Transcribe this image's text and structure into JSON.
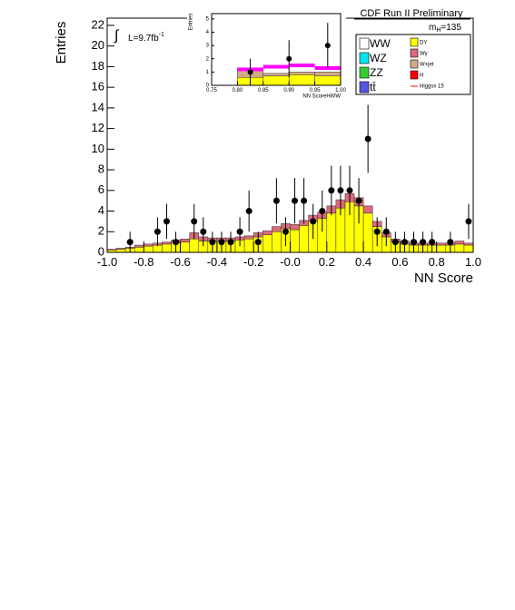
{
  "chart_data": {
    "type": "histogram",
    "title": "CDF Run II Preliminary",
    "xlabel": "NN Score",
    "ylabel": "Entries",
    "luminosity": "L=9.7fb",
    "luminosity_exponent": "-1",
    "mass": {
      "symbol": "m",
      "subscript": "H",
      "text": "=135"
    },
    "xlim": [
      -1.0,
      1.0
    ],
    "ylim": [
      0,
      22.7
    ],
    "xticks": [
      {
        "value": -1.0,
        "label": "-1.0"
      },
      -0.8,
      -0.6,
      -0.4,
      -0.2,
      {
        "value": 0,
        "label": "-0.0"
      },
      0.2,
      0.4,
      0.6,
      0.8,
      {
        "value": 1.0,
        "label": "1.0"
      }
    ],
    "yticks": [
      0,
      2,
      4,
      6,
      8,
      10,
      12,
      14,
      16,
      18,
      20,
      22
    ],
    "bins": [
      -1.0,
      -0.95,
      -0.9,
      -0.85,
      -0.8,
      -0.75,
      -0.7,
      -0.65,
      -0.6,
      -0.55,
      -0.5,
      -0.45,
      -0.4,
      -0.35,
      -0.3,
      -0.25,
      -0.2,
      -0.15,
      -0.1,
      -0.05,
      0.0,
      0.05,
      0.1,
      0.15,
      0.2,
      0.25,
      0.3,
      0.35,
      0.4,
      0.45,
      0.5,
      0.55,
      0.6,
      0.65,
      0.7,
      0.75,
      0.8,
      0.85,
      0.9,
      0.95,
      1.0
    ],
    "series": [
      {
        "name": "DY",
        "color": "#ffff00",
        "values": [
          0.2,
          0.3,
          0.4,
          0.5,
          0.6,
          0.7,
          0.8,
          0.9,
          1.0,
          1.3,
          1.1,
          1.1,
          1.1,
          1.1,
          1.2,
          1.3,
          1.5,
          1.7,
          2.0,
          2.3,
          2.2,
          2.6,
          3.0,
          3.3,
          3.8,
          4.3,
          4.9,
          4.5,
          3.8,
          2.5,
          1.5,
          1.0,
          0.8,
          0.7,
          0.7,
          0.7,
          0.7,
          0.7,
          0.8,
          0.7
        ]
      },
      {
        "name": "Wγ",
        "color": "#d96b7b",
        "values": [
          0.1,
          0.1,
          0.1,
          0.2,
          0.2,
          0.2,
          0.2,
          0.3,
          0.3,
          0.6,
          0.4,
          0.3,
          0.3,
          0.3,
          0.3,
          0.3,
          0.4,
          0.4,
          0.5,
          0.5,
          0.5,
          0.5,
          0.6,
          0.6,
          0.7,
          0.8,
          0.8,
          0.8,
          0.7,
          0.5,
          0.4,
          0.3,
          0.3,
          0.2,
          0.2,
          0.2,
          0.2,
          0.2,
          0.3,
          0.2
        ]
      }
    ],
    "data_points": {
      "x": [
        -0.875,
        -0.725,
        -0.675,
        -0.625,
        -0.525,
        -0.475,
        -0.425,
        -0.375,
        -0.325,
        -0.275,
        -0.225,
        -0.175,
        -0.075,
        -0.025,
        0.025,
        0.075,
        0.125,
        0.175,
        0.225,
        0.275,
        0.325,
        0.375,
        0.425,
        0.475,
        0.525,
        0.575,
        0.625,
        0.675,
        0.725,
        0.775,
        0.875,
        0.975
      ],
      "values": [
        1,
        2,
        3,
        1,
        3,
        2,
        1,
        1,
        1,
        2,
        4,
        1,
        5,
        2,
        5,
        5,
        3,
        4,
        6,
        6,
        6,
        5,
        11,
        2,
        2,
        1,
        1,
        1,
        1,
        1,
        1,
        3
      ],
      "errors": [
        1,
        1.4,
        1.7,
        1,
        1.7,
        1.4,
        1,
        1,
        1,
        1.4,
        2,
        1,
        2.2,
        1.4,
        2.2,
        2.2,
        1.7,
        2,
        2.4,
        2.4,
        2.4,
        2.2,
        3.3,
        1.4,
        1.4,
        1,
        1,
        1,
        1,
        1,
        1,
        1.7
      ]
    },
    "legend": [
      {
        "name": "WW",
        "color": "#ffffff"
      },
      {
        "name": "WZ",
        "color": "#00e5ee"
      },
      {
        "name": "ZZ",
        "color": "#33cc33"
      },
      {
        "name": "tt̄",
        "color": "#5555dd"
      },
      {
        "name": "DY",
        "color": "#ffff00"
      },
      {
        "name": "Wγ",
        "color": "#d96b7b"
      },
      {
        "name": "W+jet",
        "color": "#d2aa88"
      },
      {
        "name": "H",
        "color": "#ff0000"
      },
      {
        "name": "Higgsx 15",
        "color": "#ff0000",
        "line": true
      }
    ],
    "inset": {
      "xlabel": "NN ScoreHWW",
      "ylabel": "Entries",
      "xlim": [
        0.75,
        1.0
      ],
      "ylim": [
        0,
        5.4
      ],
      "xticks": [
        0.75,
        {
          "value": 0.8,
          "label": "0.80"
        },
        0.85,
        {
          "value": 0.9,
          "label": "0.90"
        },
        0.95,
        {
          "value": 1.0,
          "label": "1.00"
        }
      ],
      "yticks": [
        0,
        1,
        2,
        3,
        4,
        5
      ],
      "bins": [
        0.8,
        0.85,
        0.9,
        0.95,
        1.0
      ],
      "series": [
        {
          "name": "DY",
          "color": "#ffff00",
          "values": [
            0.6,
            0.7,
            0.8,
            0.7
          ]
        },
        {
          "name": "W+jet",
          "color": "#d2aa88",
          "values": [
            0.7,
            0.2,
            0.2,
            0.3
          ]
        }
      ],
      "higgs": {
        "color": "#ff00ff",
        "values": [
          1.2,
          1.4,
          1.5,
          1.3
        ]
      },
      "data_points": {
        "x": [
          0.825,
          0.9,
          0.975
        ],
        "values": [
          1,
          2,
          3
        ],
        "errors": [
          1,
          1.4,
          1.7
        ]
      }
    }
  }
}
